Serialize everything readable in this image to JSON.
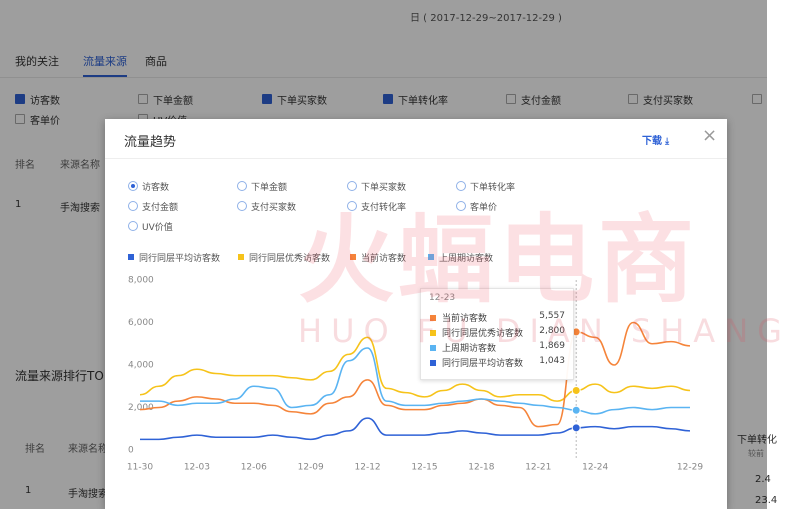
{
  "background": {
    "date_range": "日 ( 2017-12-29~2017-12-29 )",
    "tabs": [
      {
        "label": "我的关注",
        "active": false
      },
      {
        "label": "流量来源",
        "active": true
      },
      {
        "label": "商品",
        "active": false
      }
    ],
    "checkboxes": [
      {
        "label": "访客数",
        "checked": true
      },
      {
        "label": "下单金额",
        "checked": false
      },
      {
        "label": "下单买家数",
        "checked": true
      },
      {
        "label": "下单转化率",
        "checked": true
      },
      {
        "label": "支付金额",
        "checked": false
      },
      {
        "label": "支付买家数",
        "checked": false
      },
      {
        "label": "客单价",
        "checked": false
      },
      {
        "label": "UV价值",
        "checked": false
      }
    ],
    "table1": {
      "headers": [
        "排名",
        "来源名称"
      ],
      "row": [
        "1",
        "手淘搜索"
      ]
    },
    "section_title": "流量来源排行TO",
    "table2": {
      "headers": [
        "排名",
        "来源名称"
      ],
      "row": [
        "1",
        "手淘搜索"
      ]
    },
    "right_column": {
      "header": "下单转化",
      "sub": "较前",
      "values": [
        "2.4",
        "23.4"
      ]
    }
  },
  "watermark": {
    "title": "火蝠电商",
    "subtitle": "HUO FU DIAN SHANG"
  },
  "modal": {
    "title": "流量趋势",
    "download": "下载",
    "close": "×",
    "metric_options": [
      "访客数",
      "下单金额",
      "下单买家数",
      "下单转化率",
      "支付金额",
      "支付买家数",
      "支付转化率",
      "客单价",
      "UV价值"
    ],
    "selected_option": 0,
    "tooltip": {
      "title": "12-23",
      "rows": [
        {
          "name": "当前访客数",
          "value": "5,557",
          "color": "#f5843a"
        },
        {
          "name": "同行同层优秀访客数",
          "value": "2,800",
          "color": "#f6c31a"
        },
        {
          "name": "上周期访客数",
          "value": "1,869",
          "color": "#5ab4f2"
        },
        {
          "name": "同行同层平均访客数",
          "value": "1,043",
          "color": "#2f62d6"
        }
      ]
    },
    "chart_data": {
      "type": "line",
      "categories": [
        "11-30",
        null,
        null,
        "12-03",
        null,
        null,
        "12-06",
        null,
        null,
        "12-09",
        null,
        null,
        "12-12",
        null,
        null,
        "12-15",
        null,
        null,
        "12-18",
        null,
        null,
        "12-21",
        null,
        null,
        "12-24",
        null,
        null,
        null,
        null,
        "12-29"
      ],
      "highlight_index": 23,
      "ylim": [
        0,
        8000
      ],
      "yticks": [
        0,
        {
          "value": 2000,
          "label": "2,000"
        },
        {
          "value": 4000,
          "label": "4,000"
        },
        {
          "value": 6000,
          "label": "6,000"
        },
        {
          "value": 8000,
          "label": "8,000"
        }
      ],
      "grid": false,
      "series": [
        {
          "name": "同行同层平均访客数",
          "color": "#2f62d6",
          "values": [
            500,
            500,
            600,
            700,
            600,
            600,
            600,
            700,
            600,
            500,
            700,
            900,
            1500,
            700,
            700,
            700,
            800,
            900,
            800,
            700,
            700,
            700,
            800,
            1043,
            1100,
            1000,
            1100,
            1100,
            1000,
            900
          ]
        },
        {
          "name": "同行同层优秀访客数",
          "color": "#f6c31a",
          "values": [
            2600,
            3000,
            3500,
            3800,
            3600,
            3500,
            3500,
            3500,
            3400,
            3300,
            3700,
            4500,
            5300,
            2900,
            2700,
            2500,
            2800,
            3100,
            2800,
            2500,
            2600,
            2600,
            2300,
            2800,
            3100,
            2700,
            3000,
            2900,
            3000,
            2800
          ]
        },
        {
          "name": "当前访客数",
          "color": "#f5843a",
          "values": [
            1900,
            2000,
            2300,
            2500,
            2400,
            2200,
            2200,
            2100,
            1800,
            1700,
            2200,
            2500,
            3300,
            2100,
            1900,
            1900,
            2100,
            2200,
            2400,
            2100,
            2000,
            1100,
            1200,
            5557,
            5300,
            4000,
            6000,
            5000,
            5100,
            4900
          ]
        },
        {
          "name": "上周期访客数",
          "color": "#5ab4f2",
          "values": [
            2300,
            2300,
            2100,
            2200,
            2200,
            2400,
            3000,
            2900,
            2000,
            2100,
            2600,
            4200,
            4800,
            2300,
            2100,
            2100,
            2200,
            2300,
            2400,
            2300,
            2200,
            2100,
            2000,
            1869,
            1700,
            1900,
            2000,
            1900,
            2000,
            2000
          ]
        }
      ]
    }
  }
}
